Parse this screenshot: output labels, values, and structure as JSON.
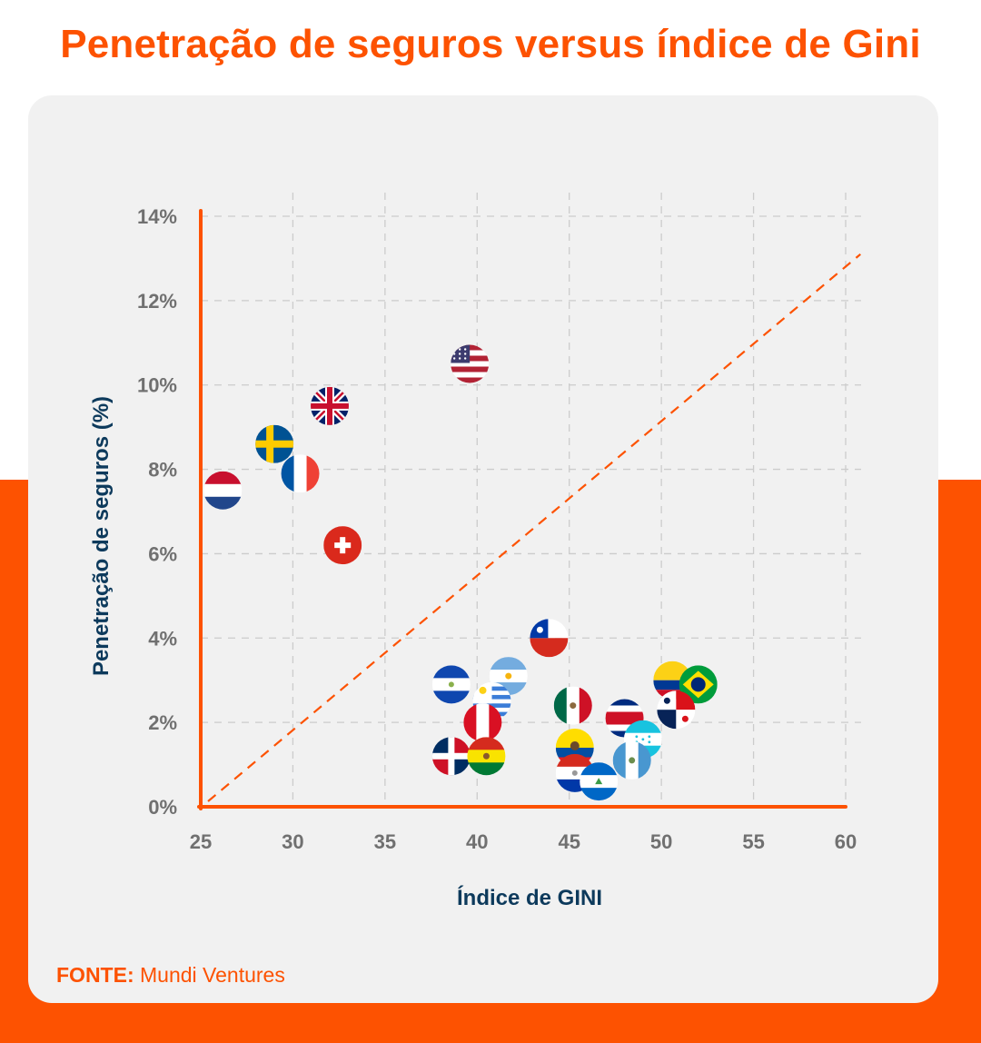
{
  "title": "Penetração de seguros versus índice de Gini",
  "source": {
    "label": "FONTE:",
    "text": "Mundi Ventures"
  },
  "colors": {
    "accent": "#fd5201",
    "navy": "#0d3a5c",
    "card": "#f1f1f1",
    "grid": "#cccccc"
  },
  "chart_data": {
    "type": "scatter",
    "xlabel": "Índice de GINI",
    "ylabel": "Penetração de seguros (%)",
    "xlim": [
      25,
      60
    ],
    "ylim": [
      0,
      14
    ],
    "x_ticks": [
      "25",
      "30",
      "35",
      "40",
      "45",
      "50",
      "55",
      "60"
    ],
    "y_ticks": [
      "0%",
      "2%",
      "4%",
      "6%",
      "8%",
      "10%",
      "12%",
      "14%"
    ],
    "grid": true,
    "trend_line": {
      "from": [
        25,
        0
      ],
      "to": [
        61,
        13.1
      ],
      "style": "dashed"
    },
    "points": [
      {
        "flag": "netherlands-flag",
        "x": 26.2,
        "y": 7.5
      },
      {
        "flag": "sweden-flag",
        "x": 29.0,
        "y": 8.6
      },
      {
        "flag": "france-flag",
        "x": 30.4,
        "y": 7.9
      },
      {
        "flag": "united-kingdom-flag",
        "x": 32.0,
        "y": 9.5
      },
      {
        "flag": "switzerland-flag",
        "x": 32.7,
        "y": 6.2
      },
      {
        "flag": "united-states-flag",
        "x": 39.6,
        "y": 10.5
      },
      {
        "flag": "chile-flag",
        "x": 43.9,
        "y": 4.0
      },
      {
        "flag": "el-salvador-flag",
        "x": 38.6,
        "y": 2.9
      },
      {
        "flag": "argentina-flag",
        "x": 41.7,
        "y": 3.1
      },
      {
        "flag": "uruguay-flag",
        "x": 40.8,
        "y": 2.5
      },
      {
        "flag": "peru-flag",
        "x": 40.3,
        "y": 2.0
      },
      {
        "flag": "dominican-republic-flag",
        "x": 38.6,
        "y": 1.2
      },
      {
        "flag": "bolivia-flag",
        "x": 40.5,
        "y": 1.2
      },
      {
        "flag": "mexico-flag",
        "x": 45.2,
        "y": 2.4
      },
      {
        "flag": "costa-rica-flag",
        "x": 48.0,
        "y": 2.1
      },
      {
        "flag": "colombia-flag",
        "x": 50.6,
        "y": 3.0
      },
      {
        "flag": "brazil-flag",
        "x": 52.0,
        "y": 2.9
      },
      {
        "flag": "panama-flag",
        "x": 50.8,
        "y": 2.3
      },
      {
        "flag": "honduras-flag",
        "x": 49.0,
        "y": 1.6
      },
      {
        "flag": "guatemala-flag",
        "x": 48.4,
        "y": 1.1
      },
      {
        "flag": "ecuador-flag",
        "x": 45.3,
        "y": 1.4
      },
      {
        "flag": "paraguay-flag",
        "x": 45.3,
        "y": 0.8
      },
      {
        "flag": "nicaragua-flag",
        "x": 46.6,
        "y": 0.6
      }
    ]
  }
}
